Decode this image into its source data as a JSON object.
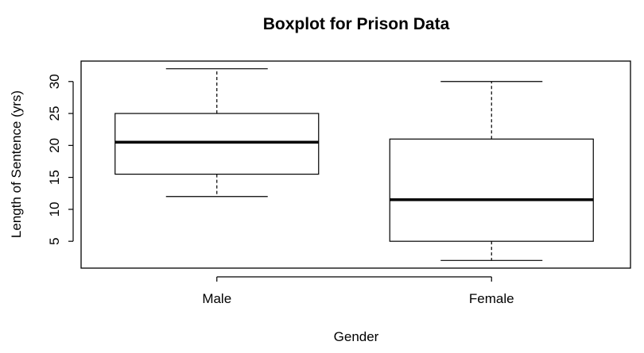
{
  "chart_data": {
    "type": "boxplot",
    "title": "Boxplot for Prison Data",
    "xlabel": "Gender",
    "ylabel": "Length of Sentence (yrs)",
    "categories": [
      "Male",
      "Female"
    ],
    "boxes": [
      {
        "category": "Male",
        "min": 12,
        "q1": 15.5,
        "median": 20.5,
        "q3": 25,
        "max": 32
      },
      {
        "category": "Female",
        "min": 2,
        "q1": 5,
        "median": 11.5,
        "q3": 21,
        "max": 30
      }
    ],
    "y_ticks": [
      5,
      10,
      15,
      20,
      25,
      30
    ],
    "ylim": [
      0.8,
      33.2
    ],
    "grid": false,
    "colors": {
      "box_fill": "#ffffff",
      "stroke": "#000000"
    }
  }
}
